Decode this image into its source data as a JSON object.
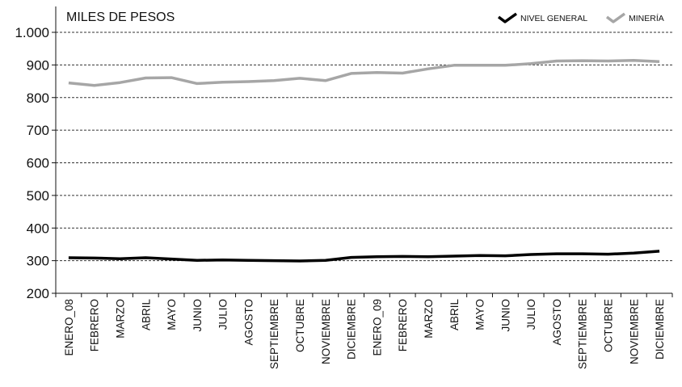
{
  "chart_data": {
    "type": "line",
    "ylabel": "MILES DE PESOS",
    "ylim": [
      200,
      1000
    ],
    "yticks": [
      "200",
      "300",
      "400",
      "500",
      "600",
      "700",
      "800",
      "900",
      "1.000"
    ],
    "ytick_values": [
      200,
      300,
      400,
      500,
      600,
      700,
      800,
      900,
      1000
    ],
    "grid": true,
    "legend_position": "top-right",
    "categories": [
      "ENERO_08",
      "FEBRERO",
      "MARZO",
      "ABRIL",
      "MAYO",
      "JUNIO",
      "JULIO",
      "AGOSTO",
      "SEPTIEMBRE",
      "OCTUBRE",
      "NOVIEMBRE",
      "DICIEMBRE",
      "ENERO_09",
      "FEBRERO",
      "MARZO",
      "ABRIL",
      "MAYO",
      "JUNIO",
      "JULIO",
      "AGOSTO",
      "SEPTIEMBRE",
      "OCTUBRE",
      "NOVIEMBRE",
      "DICIEMBRE"
    ],
    "series": [
      {
        "name": "NIVEL GENERAL",
        "color": "#000000",
        "values": [
          309,
          308,
          306,
          309,
          305,
          301,
          302,
          301,
          300,
          299,
          301,
          310,
          312,
          313,
          312,
          314,
          316,
          315,
          319,
          321,
          321,
          320,
          323,
          329
        ]
      },
      {
        "name": "MINERÍA",
        "color": "#a6a6a6",
        "values": [
          845,
          837,
          846,
          860,
          861,
          843,
          847,
          849,
          852,
          859,
          852,
          874,
          877,
          875,
          888,
          899,
          899,
          899,
          904,
          912,
          913,
          912,
          914,
          910
        ]
      }
    ]
  }
}
